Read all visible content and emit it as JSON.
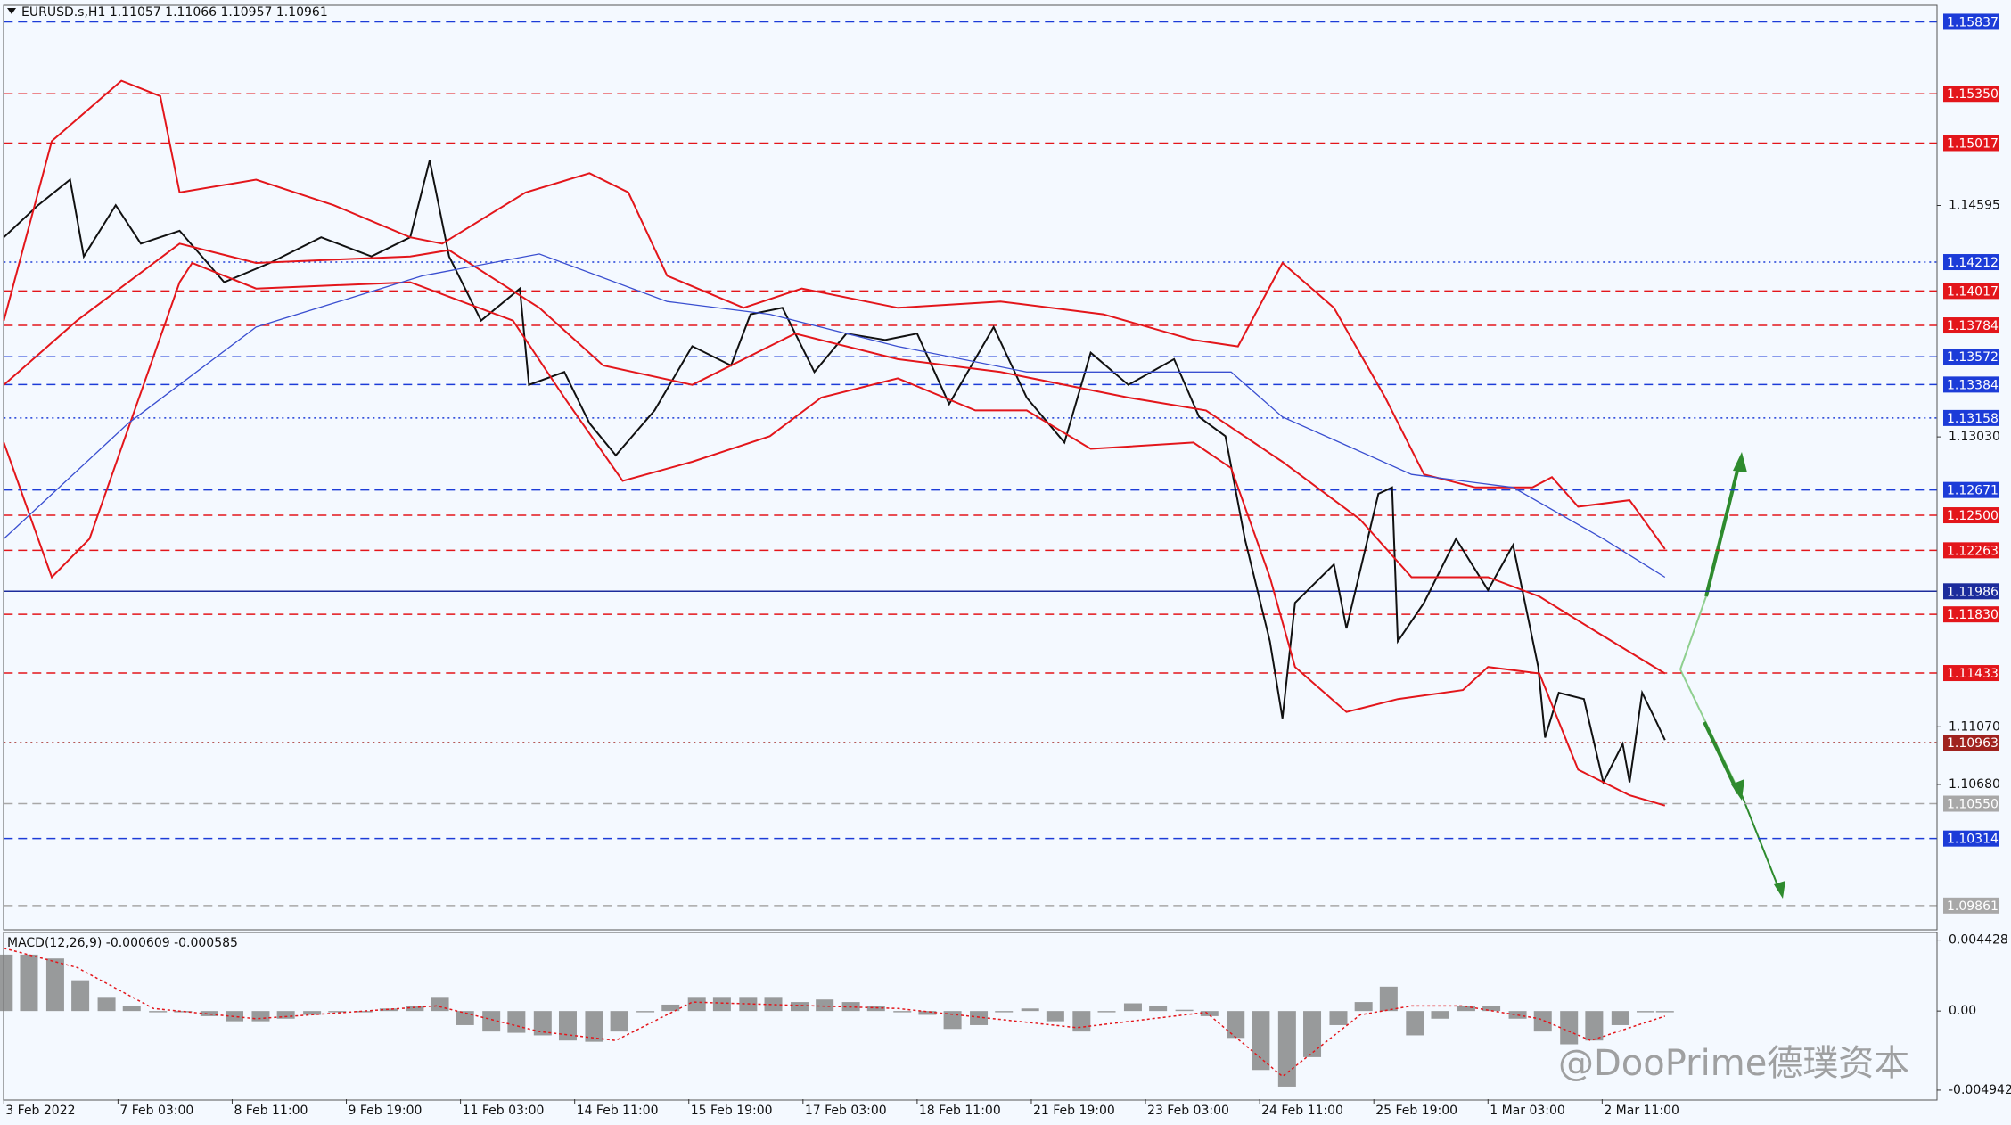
{
  "chart_data": [
    {
      "type": "line",
      "title": "EURUSD.s,H1  1.11057 1.11066 1.10957 1.10961",
      "watermark": "@DooPrime德璞资本",
      "xlim": [
        0,
        16.93
      ],
      "xticks": [
        {
          "value": 0,
          "label": "3 Feb 2022"
        },
        {
          "value": 1,
          "label": "7 Feb 03:00"
        },
        {
          "value": 2,
          "label": "8 Feb 11:00"
        },
        {
          "value": 3,
          "label": "9 Feb 19:00"
        },
        {
          "value": 4,
          "label": "11 Feb 03:00"
        },
        {
          "value": 5,
          "label": "14 Feb 11:00"
        },
        {
          "value": 6,
          "label": "15 Feb 19:00"
        },
        {
          "value": 7,
          "label": "17 Feb 03:00"
        },
        {
          "value": 8,
          "label": "18 Feb 11:00"
        },
        {
          "value": 9,
          "label": "21 Feb 19:00"
        },
        {
          "value": 10,
          "label": "23 Feb 03:00"
        },
        {
          "value": 11,
          "label": "24 Feb 11:00"
        },
        {
          "value": 12,
          "label": "25 Feb 19:00"
        },
        {
          "value": 13,
          "label": "1 Mar 03:00"
        },
        {
          "value": 14,
          "label": "2 Mar 11:00"
        }
      ],
      "ylim": [
        1.09705,
        1.15941
      ],
      "yticks": [
        1.14595,
        {
          "value": 1.1303,
          "label": "1.13030"
        },
        {
          "value": 1.1107,
          "label": "1.11070"
        },
        {
          "value": 1.1068,
          "label": "1.10680"
        }
      ],
      "levels": [
        {
          "value": 1.15837,
          "label": "1.15837",
          "color": "#1c3cd8",
          "style": "dashed"
        },
        {
          "value": 1.1535,
          "label": "1.15350",
          "color": "#e3161b",
          "style": "dashed"
        },
        {
          "value": 1.15017,
          "label": "1.15017",
          "color": "#e3161b",
          "style": "dashed"
        },
        {
          "value": 1.14212,
          "label": "1.14212",
          "color": "#1c3cd8",
          "style": "dotted"
        },
        {
          "value": 1.14017,
          "label": "1.14017",
          "color": "#e3161b",
          "style": "dashed"
        },
        {
          "value": 1.13784,
          "label": "1.13784",
          "color": "#e3161b",
          "style": "dashed"
        },
        {
          "value": 1.13572,
          "label": "1.13572",
          "color": "#1c3cd8",
          "style": "dashed"
        },
        {
          "value": 1.13384,
          "label": "1.13384",
          "color": "#1c3cd8",
          "style": "dashed"
        },
        {
          "value": 1.13158,
          "label": "1.13158",
          "color": "#1c3cd8",
          "style": "dotted"
        },
        {
          "value": 1.12671,
          "label": "1.12671",
          "color": "#1c3cd8",
          "style": "dashed"
        },
        {
          "value": 1.125,
          "label": "1.12500",
          "color": "#e3161b",
          "style": "dashed"
        },
        {
          "value": 1.12263,
          "label": "1.12263",
          "color": "#e3161b",
          "style": "dashed"
        },
        {
          "value": 1.11986,
          "label": "1.11986",
          "color": "#1c2c9c",
          "style": "solid"
        },
        {
          "value": 1.1183,
          "label": "1.11830",
          "color": "#e3161b",
          "style": "dashed"
        },
        {
          "value": 1.11433,
          "label": "1.11433",
          "color": "#e3161b",
          "style": "dashed"
        },
        {
          "value": 1.10963,
          "label": "1.10963",
          "color": "#a0231f",
          "style": "dotted"
        },
        {
          "value": 1.1055,
          "label": "1.10550",
          "color": "#a8a8a8",
          "style": "dashed"
        },
        {
          "value": 1.10314,
          "label": "1.10314",
          "color": "#1c3cd8",
          "style": "dashed"
        },
        {
          "value": 1.09861,
          "label": "1.09861",
          "color": "#a8a8a8",
          "style": "dashed"
        }
      ],
      "series": [
        {
          "color": "#111111",
          "width": 2,
          "x": [
            0,
            0.3,
            0.58,
            0.7,
            0.98,
            1.2,
            1.54,
            1.93,
            2.33,
            2.78,
            3.22,
            3.56,
            3.73,
            3.9,
            4.18,
            4.52,
            4.6,
            4.91,
            5.13,
            5.36,
            5.7,
            6.03,
            6.37,
            6.54,
            6.82,
            7.1,
            7.38,
            7.72,
            8,
            8.28,
            8.67,
            8.96,
            9.29,
            9.52,
            9.85,
            10.25,
            10.47,
            10.7,
            10.87,
            11.09,
            11.2,
            11.31,
            11.65,
            11.76,
            12.04,
            12.16,
            12.21,
            12.44,
            12.72,
            13,
            13.22,
            13.44,
            13.5,
            13.62,
            13.84,
            14.01,
            14.18,
            14.24,
            14.35,
            14.46,
            14.55
          ],
          "values": [
            1.1438,
            1.14597,
            1.1477,
            1.1425,
            1.14597,
            1.14337,
            1.14424,
            1.14076,
            1.14206,
            1.1438,
            1.1425,
            1.1438,
            1.149,
            1.1425,
            1.13816,
            1.14033,
            1.13382,
            1.13469,
            1.13122,
            1.12905,
            1.13209,
            1.13643,
            1.13513,
            1.13859,
            1.13903,
            1.13469,
            1.13729,
            1.13686,
            1.13729,
            1.13252,
            1.13773,
            1.13295,
            1.12992,
            1.13599,
            1.13382,
            1.13556,
            1.13165,
            1.13035,
            1.12341,
            1.11648,
            1.11127,
            1.11908,
            1.12168,
            1.11735,
            1.12645,
            1.12688,
            1.11648,
            1.11908,
            1.12341,
            1.11994,
            1.12298,
            1.11474,
            1.10997,
            1.113,
            1.11257,
            1.10694,
            1.10954,
            1.10694,
            1.113,
            1.11127,
            1.1098
          ]
        },
        {
          "color": "#e3161b",
          "width": 2,
          "x": [
            0,
            0.42,
            1.03,
            1.37,
            1.54,
            2.21,
            2.89,
            3.56,
            3.84,
            4.57,
            5.13,
            5.47,
            5.81,
            6.48,
            6.99,
            7.83,
            8.73,
            9.63,
            10.42,
            10.81,
            11.2,
            11.65,
            12.1,
            12.44,
            12.89,
            13.39,
            13.56,
            13.79,
            14.24,
            14.55
          ],
          "values": [
            1.13816,
            1.1503,
            1.15438,
            1.15334,
            1.14683,
            1.1477,
            1.14597,
            1.1438,
            1.14337,
            1.14683,
            1.14813,
            1.14683,
            1.1412,
            1.13903,
            1.14033,
            1.13903,
            1.13946,
            1.13859,
            1.13686,
            1.13642,
            1.14206,
            1.13903,
            1.13296,
            1.12776,
            1.12688,
            1.12688,
            1.12758,
            1.12558,
            1.12602,
            1.12272
          ]
        },
        {
          "color": "#e3161b",
          "width": 2,
          "x": [
            0,
            0.64,
            1.54,
            2.21,
            3.56,
            3.9,
            4.69,
            5.25,
            6.03,
            6.93,
            7.83,
            8.73,
            9.85,
            10.53,
            11.2,
            11.88,
            12.33,
            13,
            13.45,
            13.9,
            14.55
          ],
          "values": [
            1.13382,
            1.13816,
            1.14337,
            1.14206,
            1.1425,
            1.14293,
            1.13903,
            1.13513,
            1.13382,
            1.13729,
            1.13556,
            1.13469,
            1.13296,
            1.13209,
            1.12862,
            1.12472,
            1.12081,
            1.12081,
            1.11951,
            1.11735,
            1.1143
          ]
        },
        {
          "color": "#e3161b",
          "width": 2,
          "x": [
            0,
            0.42,
            0.75,
            1.54,
            1.65,
            2.21,
            3.56,
            4.46,
            4.91,
            5.42,
            6.03,
            6.71,
            7.16,
            7.83,
            8.51,
            8.96,
            9.52,
            10.42,
            10.75,
            11.09,
            11.31,
            11.76,
            12.21,
            12.78,
            13,
            13.45,
            13.79,
            14.24,
            14.55
          ],
          "values": [
            1.12992,
            1.12081,
            1.12341,
            1.14076,
            1.14206,
            1.14033,
            1.14076,
            1.13816,
            1.13296,
            1.12732,
            1.12862,
            1.13035,
            1.13296,
            1.13426,
            1.13209,
            1.13209,
            1.12949,
            1.12992,
            1.12819,
            1.12081,
            1.11474,
            1.1117,
            1.11257,
            1.11318,
            1.11474,
            1.1143,
            1.1078,
            1.10607,
            1.10537
          ]
        },
        {
          "color": "#3a4fd0",
          "width": 1.3,
          "x": [
            0,
            1.09,
            2.21,
            3.67,
            4.69,
            5.81,
            6.71,
            7.83,
            8.96,
            10.08,
            10.75,
            11.2,
            12.33,
            13.22,
            14.01,
            14.55
          ],
          "values": [
            1.12341,
            1.13122,
            1.13773,
            1.1412,
            1.14267,
            1.13946,
            1.13859,
            1.13642,
            1.13469,
            1.13469,
            1.13469,
            1.13165,
            1.12776,
            1.12688,
            1.12341,
            1.12081
          ]
        }
      ]
    },
    {
      "type": "bar",
      "title": "MACD(12,26,9) -0.000609 -0.000585",
      "color": "#7a7a7a",
      "xlim": [
        0,
        16.93
      ],
      "ylim": [
        -0.005502,
        0.004828
      ],
      "yticks": [
        0.004428,
        {
          "value": 0,
          "label": "0.00"
        },
        -0.004942
      ],
      "x": [
        0,
        0.22,
        0.45,
        0.67,
        0.9,
        1.12,
        1.35,
        1.57,
        1.8,
        2.02,
        2.25,
        2.47,
        2.7,
        2.92,
        3.15,
        3.37,
        3.6,
        3.82,
        4.04,
        4.27,
        4.49,
        4.72,
        4.94,
        5.17,
        5.39,
        5.62,
        5.84,
        6.07,
        6.29,
        6.52,
        6.74,
        6.97,
        7.19,
        7.42,
        7.64,
        7.87,
        8.09,
        8.31,
        8.54,
        8.76,
        8.99,
        9.21,
        9.44,
        9.66,
        9.89,
        10.11,
        10.34,
        10.56,
        10.79,
        11.01,
        11.24,
        11.46,
        11.69,
        11.91,
        12.13,
        12.36,
        12.58,
        12.81,
        13.03,
        13.26,
        13.48,
        13.71,
        13.93,
        14.16,
        14.38,
        14.55
      ],
      "values": [
        0.00352,
        0.00352,
        0.00328,
        0.00192,
        0.00088,
        0.00032,
        -8e-05,
        -8e-05,
        -0.00032,
        -0.00064,
        -0.00064,
        -0.00048,
        -0.00024,
        -8e-05,
        -8e-05,
        0.00016,
        0.00032,
        0.00088,
        -0.00088,
        -0.00128,
        -0.00136,
        -0.00152,
        -0.00184,
        -0.00192,
        -0.00128,
        -8e-05,
        0.0004,
        0.00088,
        0.00088,
        0.00088,
        0.00088,
        0.00056,
        0.00072,
        0.00056,
        0.00032,
        -8e-05,
        -0.00024,
        -0.00112,
        -0.00088,
        -8e-05,
        0.00016,
        -0.00064,
        -0.00128,
        -8e-05,
        0.00048,
        0.00032,
        8e-05,
        -0.00032,
        -0.00168,
        -0.00368,
        -0.00472,
        -0.00288,
        -0.00088,
        0.00056,
        0.00152,
        -0.00152,
        -0.00048,
        0.00032,
        0.00032,
        -0.00048,
        -0.00128,
        -0.00208,
        -0.00184,
        -0.00088,
        -8e-05,
        -8e-05
      ],
      "signal": {
        "color": "#e3161b",
        "x": [
          0,
          0.64,
          1.31,
          2.21,
          3.79,
          4.69,
          5.36,
          6.03,
          7.83,
          9.4,
          10.53,
          11.2,
          11.88,
          12.33,
          12.78,
          13.45,
          13.9,
          14.55
        ],
        "values": [
          0.00392,
          0.00272,
          0.00016,
          -0.00048,
          0.00032,
          -0.00128,
          -0.00184,
          0.00056,
          0.00016,
          -0.00104,
          -8e-05,
          -0.00408,
          -0.00024,
          0.00032,
          0.00032,
          -0.00048,
          -0.00184,
          -0.00032
        ]
      }
    }
  ]
}
